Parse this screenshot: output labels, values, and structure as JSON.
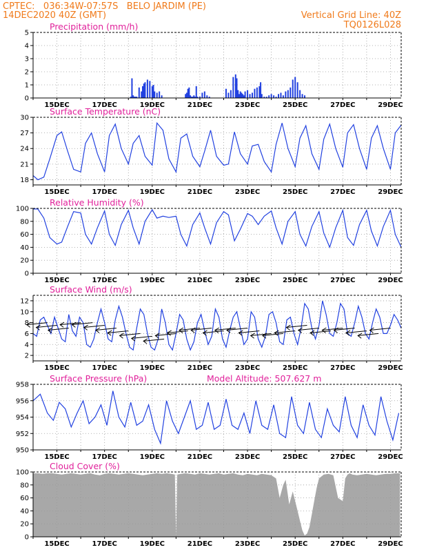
{
  "header": {
    "line1_left": "CPTEC:   036:34W-07:57S   BELO JARDIM (PE)",
    "line2_left": "14DEC2020 40Z (GMT)",
    "line1_right": "Vertical Grid Line: 40Z",
    "line2_right": "TQ0126L028"
  },
  "colors": {
    "header": "#f07a1a",
    "titles": "#e0209a",
    "series": "#2040e0",
    "cloud": "#a8a8a8",
    "grid": "#999999"
  },
  "chart_data": [
    {
      "id": "precipitation",
      "type": "bar",
      "title": "Precipitation (mm/h)",
      "ylim": [
        0,
        5
      ],
      "yticks": [
        0,
        1,
        2,
        3,
        4,
        5
      ],
      "xticks": [
        "15DEC",
        "17DEC",
        "19DEC",
        "21DEC",
        "23DEC",
        "25DEC",
        "27DEC",
        "29DEC"
      ],
      "x": [
        4.1,
        4.15,
        4.2,
        4.25,
        4.3,
        4.35,
        4.45,
        4.55,
        4.6,
        4.65,
        4.7,
        4.8,
        4.9,
        5.0,
        5.05,
        5.1,
        5.2,
        5.3,
        5.4,
        6.4,
        6.45,
        6.5,
        6.55,
        6.6,
        6.65,
        6.7,
        6.75,
        6.8,
        6.85,
        6.9,
        7.0,
        7.1,
        7.2,
        7.3,
        7.4,
        8.1,
        8.2,
        8.3,
        8.4,
        8.5,
        8.55,
        8.6,
        8.65,
        8.7,
        8.75,
        8.8,
        8.85,
        8.9,
        9.0,
        9.1,
        9.2,
        9.3,
        9.4,
        9.5,
        9.55,
        9.6,
        9.7,
        9.8,
        9.9,
        10.0,
        10.1,
        10.2,
        10.3,
        10.4,
        10.5,
        10.6,
        10.7,
        10.8,
        10.9,
        11.0,
        11.1,
        11.2,
        11.3,
        11.4
      ],
      "values": [
        0.1,
        1.5,
        0.2,
        0.1,
        0.1,
        0.1,
        0.8,
        0.5,
        0.9,
        1.1,
        1.2,
        1.4,
        1.3,
        0.9,
        1.0,
        0.5,
        0.4,
        0.5,
        0.2,
        0.3,
        0.4,
        0.7,
        0.8,
        0.2,
        0.1,
        0.1,
        0.2,
        0.1,
        0.9,
        0.1,
        0.1,
        0.4,
        0.5,
        0.2,
        0.1,
        0.7,
        0.4,
        0.6,
        1.6,
        1.8,
        1.5,
        0.6,
        0.3,
        0.5,
        0.4,
        0.3,
        0.2,
        0.5,
        0.6,
        0.3,
        0.4,
        0.7,
        0.8,
        0.9,
        1.2,
        0.3,
        0.1,
        0.1,
        0.2,
        0.3,
        0.2,
        0.1,
        0.3,
        0.4,
        0.2,
        0.5,
        0.6,
        0.8,
        1.4,
        1.6,
        1.2,
        0.6,
        0.3,
        0.2
      ]
    },
    {
      "id": "temperature",
      "type": "line",
      "title": "Surface Temperature (nC)",
      "ylim": [
        17,
        30
      ],
      "yticks": [
        18,
        21,
        24,
        27,
        30
      ],
      "xticks": [
        "15DEC",
        "17DEC",
        "19DEC",
        "21DEC",
        "23DEC",
        "25DEC",
        "27DEC",
        "29DEC"
      ],
      "x": [
        0.0,
        0.2,
        0.45,
        0.7,
        1.0,
        1.2,
        1.45,
        1.7,
        2.0,
        2.2,
        2.45,
        2.7,
        3.0,
        3.2,
        3.45,
        3.7,
        4.0,
        4.2,
        4.45,
        4.7,
        5.0,
        5.2,
        5.45,
        5.7,
        6.0,
        6.2,
        6.45,
        6.7,
        7.0,
        7.2,
        7.45,
        7.7,
        8.0,
        8.2,
        8.45,
        8.7,
        9.0,
        9.2,
        9.45,
        9.7,
        10.0,
        10.2,
        10.45,
        10.7,
        11.0,
        11.2,
        11.45,
        11.7,
        12.0,
        12.2,
        12.45,
        12.7,
        13.0,
        13.2,
        13.45,
        13.7,
        14.0,
        14.2,
        14.45,
        14.7,
        15.0,
        15.2,
        15.45
      ],
      "values": [
        18.8,
        18.0,
        18.5,
        22.0,
        26.5,
        27.2,
        23.5,
        20.0,
        19.5,
        25.0,
        27.0,
        23.0,
        19.5,
        26.5,
        28.7,
        24.0,
        21.0,
        25.0,
        26.5,
        22.5,
        20.8,
        28.9,
        27.5,
        22.0,
        19.5,
        26.0,
        26.8,
        22.5,
        20.5,
        23.5,
        27.5,
        22.5,
        20.8,
        21.0,
        27.2,
        23.0,
        21.0,
        24.5,
        24.8,
        21.5,
        19.5,
        24.8,
        28.9,
        24.0,
        20.5,
        26.0,
        28.4,
        23.0,
        20.0,
        25.8,
        28.7,
        24.0,
        20.4,
        27.0,
        28.6,
        24.0,
        20.0,
        26.0,
        28.4,
        24.0,
        20.0,
        27.0,
        28.5
      ]
    },
    {
      "id": "humidity",
      "type": "line",
      "title": "Relative Humidity (%)",
      "ylim": [
        0,
        100
      ],
      "yticks": [
        0,
        20,
        40,
        60,
        80,
        100
      ],
      "xticks": [
        "15DEC",
        "17DEC",
        "19DEC",
        "21DEC",
        "23DEC",
        "25DEC",
        "27DEC",
        "29DEC"
      ],
      "x": [
        0.0,
        0.2,
        0.45,
        0.7,
        1.0,
        1.2,
        1.45,
        1.7,
        2.0,
        2.2,
        2.45,
        2.7,
        3.0,
        3.2,
        3.45,
        3.7,
        4.0,
        4.2,
        4.45,
        4.7,
        5.0,
        5.2,
        5.45,
        5.7,
        6.0,
        6.2,
        6.45,
        6.7,
        7.0,
        7.2,
        7.45,
        7.7,
        8.0,
        8.2,
        8.45,
        8.7,
        9.0,
        9.2,
        9.45,
        9.7,
        10.0,
        10.2,
        10.45,
        10.7,
        11.0,
        11.2,
        11.45,
        11.7,
        12.0,
        12.2,
        12.45,
        12.7,
        13.0,
        13.2,
        13.45,
        13.7,
        14.0,
        14.2,
        14.45,
        14.7,
        15.0,
        15.2,
        15.45
      ],
      "values": [
        99.0,
        99.0,
        85.0,
        55.0,
        45.0,
        48.0,
        72.0,
        95.0,
        93.0,
        60.0,
        45.0,
        70.0,
        96.0,
        60.0,
        43.0,
        75.0,
        97.0,
        70.0,
        45.0,
        80.0,
        98.0,
        85.0,
        88.0,
        86.0,
        88.0,
        60.0,
        42.0,
        75.0,
        93.0,
        70.0,
        45.0,
        78.0,
        95.0,
        90.0,
        50.0,
        68.0,
        92.0,
        88.0,
        75.0,
        88.0,
        96.0,
        70.0,
        45.0,
        80.0,
        95.0,
        60.0,
        42.0,
        72.0,
        95.0,
        62.0,
        40.0,
        70.0,
        97.0,
        55.0,
        43.0,
        75.0,
        97.0,
        65.0,
        42.0,
        72.0,
        97.0,
        60.0,
        40.0
      ]
    },
    {
      "id": "wind",
      "type": "line",
      "title": "Surface Wind (m/s)",
      "ylim": [
        1,
        13
      ],
      "yticks": [
        2,
        4,
        6,
        8,
        10,
        12
      ],
      "xticks": [
        "15DEC",
        "17DEC",
        "19DEC",
        "21DEC",
        "23DEC",
        "25DEC",
        "27DEC",
        "29DEC"
      ],
      "x": [
        0.0,
        0.15,
        0.3,
        0.45,
        0.6,
        0.75,
        0.9,
        1.05,
        1.2,
        1.35,
        1.5,
        1.65,
        1.8,
        1.95,
        2.1,
        2.25,
        2.4,
        2.55,
        2.7,
        2.85,
        3.0,
        3.15,
        3.3,
        3.45,
        3.6,
        3.75,
        3.9,
        4.05,
        4.2,
        4.35,
        4.5,
        4.65,
        4.8,
        4.95,
        5.1,
        5.25,
        5.4,
        5.55,
        5.7,
        5.85,
        6.0,
        6.15,
        6.3,
        6.45,
        6.6,
        6.75,
        6.9,
        7.05,
        7.2,
        7.35,
        7.5,
        7.65,
        7.8,
        7.95,
        8.1,
        8.25,
        8.4,
        8.55,
        8.7,
        8.85,
        9.0,
        9.15,
        9.3,
        9.45,
        9.6,
        9.75,
        9.9,
        10.05,
        10.2,
        10.35,
        10.5,
        10.65,
        10.8,
        10.95,
        11.1,
        11.25,
        11.4,
        11.55,
        11.7,
        11.85,
        12.0,
        12.15,
        12.3,
        12.45,
        12.6,
        12.75,
        12.9,
        13.05,
        13.2,
        13.35,
        13.5,
        13.65,
        13.8,
        13.95,
        14.1,
        14.25,
        14.4,
        14.55,
        14.7,
        14.85,
        15.0,
        15.15,
        15.3,
        15.45
      ],
      "values": [
        6.0,
        5.5,
        8.5,
        9.0,
        7.5,
        6.0,
        9.0,
        7.0,
        5.0,
        4.5,
        9.5,
        6.5,
        5.5,
        9.0,
        8.0,
        4.0,
        3.5,
        5.0,
        8.0,
        10.5,
        8.0,
        5.0,
        4.5,
        8.5,
        11.0,
        9.0,
        6.0,
        3.5,
        3.0,
        7.0,
        10.5,
        9.5,
        6.0,
        3.5,
        3.0,
        5.0,
        10.5,
        8.0,
        4.0,
        3.0,
        6.0,
        9.5,
        8.5,
        5.0,
        3.0,
        4.5,
        8.0,
        9.5,
        6.5,
        4.0,
        5.5,
        10.5,
        9.0,
        5.0,
        3.5,
        6.5,
        9.0,
        10.0,
        7.0,
        4.0,
        5.0,
        10.0,
        9.0,
        5.0,
        3.5,
        5.5,
        9.5,
        10.0,
        8.0,
        4.5,
        4.0,
        8.5,
        9.0,
        6.0,
        4.0,
        7.0,
        11.5,
        10.5,
        7.0,
        5.0,
        7.5,
        12.0,
        9.5,
        6.0,
        5.5,
        8.0,
        11.5,
        10.5,
        6.0,
        5.5,
        8.0,
        11.0,
        9.0,
        6.0,
        5.0,
        8.0,
        10.5,
        9.0,
        6.0,
        6.0,
        7.5,
        9.5,
        8.5,
        7.0
      ],
      "vectors_x": [
        0.6,
        1.0,
        1.5,
        2.0,
        2.5,
        3.0,
        3.5,
        4.0,
        4.5,
        5.0,
        5.5,
        6.0,
        6.5,
        7.0,
        7.5,
        8.0,
        8.5,
        9.0,
        9.5,
        10.0,
        10.5,
        11.0,
        11.5,
        12.0,
        12.5,
        13.0,
        13.5,
        14.0,
        14.5,
        15.0
      ],
      "vectors_y": [
        8.0,
        7.5,
        7.0,
        8.0,
        8.0,
        7.5,
        7.0,
        6.5,
        6.0,
        5.5,
        5.0,
        6.0,
        6.5,
        7.0,
        7.0,
        6.5,
        7.0,
        7.0,
        6.5,
        6.0,
        6.0,
        6.5,
        7.5,
        7.0,
        6.5,
        7.0,
        7.0,
        6.5,
        6.0,
        7.0
      ]
    },
    {
      "id": "pressure",
      "type": "line",
      "title": "Surface Pressure (hPa)",
      "annotation": "Model Altitude: 507.627 m",
      "ylim": [
        950,
        958
      ],
      "yticks": [
        950,
        952,
        954,
        956,
        958
      ],
      "xticks": [
        "15DEC",
        "17DEC",
        "19DEC",
        "21DEC",
        "23DEC",
        "25DEC",
        "27DEC",
        "29DEC"
      ],
      "x": [
        0.0,
        0.3,
        0.6,
        0.85,
        1.1,
        1.35,
        1.6,
        1.85,
        2.1,
        2.35,
        2.6,
        2.85,
        3.1,
        3.35,
        3.6,
        3.85,
        4.1,
        4.35,
        4.6,
        4.85,
        5.1,
        5.35,
        5.6,
        5.85,
        6.1,
        6.35,
        6.6,
        6.85,
        7.1,
        7.35,
        7.6,
        7.85,
        8.1,
        8.35,
        8.6,
        8.85,
        9.1,
        9.35,
        9.6,
        9.85,
        10.1,
        10.35,
        10.6,
        10.85,
        11.1,
        11.35,
        11.6,
        11.85,
        12.1,
        12.35,
        12.6,
        12.85,
        13.1,
        13.35,
        13.6,
        13.85,
        14.1,
        14.35,
        14.6,
        14.85,
        15.1,
        15.35
      ],
      "values": [
        956.0,
        956.8,
        954.5,
        953.6,
        955.8,
        955.0,
        952.8,
        954.5,
        956.0,
        953.2,
        954.0,
        955.5,
        953.0,
        957.2,
        954.0,
        952.8,
        955.8,
        953.0,
        953.5,
        955.5,
        952.5,
        950.8,
        956.0,
        953.5,
        952.0,
        954.0,
        956.0,
        952.5,
        953.0,
        955.8,
        952.5,
        953.0,
        956.2,
        953.0,
        952.5,
        954.5,
        952.0,
        956.0,
        953.0,
        952.5,
        955.5,
        952.0,
        951.5,
        956.5,
        953.0,
        952.0,
        955.8,
        952.5,
        951.5,
        955.0,
        953.0,
        952.2,
        956.5,
        953.0,
        951.5,
        955.5,
        953.0,
        951.8,
        956.5,
        953.5,
        951.2,
        954.5
      ]
    },
    {
      "id": "cloud",
      "type": "area",
      "title": "Cloud Cover (%)",
      "ylim": [
        0,
        100
      ],
      "yticks": [
        0,
        20,
        40,
        60,
        80,
        100
      ],
      "xticks": [
        "15DEC",
        "17DEC",
        "19DEC",
        "21DEC",
        "23DEC",
        "25DEC",
        "27DEC",
        "29DEC"
      ],
      "x": [
        0.0,
        0.2,
        0.4,
        0.6,
        0.8,
        1.0,
        1.2,
        1.4,
        1.6,
        1.8,
        2.0,
        2.2,
        2.4,
        2.6,
        2.8,
        3.0,
        3.2,
        3.4,
        3.6,
        3.8,
        4.0,
        4.2,
        4.4,
        4.6,
        4.8,
        5.0,
        5.2,
        5.4,
        5.6,
        5.8,
        5.95,
        6.0,
        6.05,
        6.2,
        6.4,
        6.6,
        6.8,
        7.0,
        7.2,
        7.4,
        7.6,
        7.8,
        8.0,
        8.2,
        8.4,
        8.6,
        8.8,
        9.0,
        9.2,
        9.4,
        9.6,
        9.8,
        10.0,
        10.2,
        10.35,
        10.5,
        10.6,
        10.75,
        10.9,
        11.0,
        11.1,
        11.2,
        11.3,
        11.4,
        11.5,
        11.6,
        11.7,
        11.8,
        11.9,
        12.0,
        12.2,
        12.4,
        12.6,
        12.8,
        13.0,
        13.1,
        13.2,
        13.3,
        13.4,
        13.6,
        13.8,
        14.0,
        14.2,
        14.4,
        14.6,
        14.8,
        15.0,
        15.2,
        15.4
      ],
      "values": [
        98.0,
        98.0,
        97.0,
        98.0,
        98.0,
        97.0,
        96.0,
        97.0,
        98.0,
        97.0,
        96.0,
        97.0,
        98.0,
        96.0,
        95.0,
        97.0,
        98.0,
        97.0,
        96.0,
        97.0,
        98.0,
        97.0,
        96.0,
        95.0,
        96.0,
        97.0,
        98.0,
        97.0,
        98.0,
        97.0,
        96.0,
        0.0,
        96.0,
        97.0,
        98.0,
        97.0,
        96.0,
        98.0,
        97.0,
        96.0,
        97.0,
        98.0,
        96.0,
        97.0,
        98.0,
        96.0,
        95.0,
        97.0,
        96.0,
        95.0,
        97.0,
        96.0,
        95.0,
        90.0,
        60.0,
        80.0,
        88.0,
        50.0,
        70.0,
        55.0,
        40.0,
        25.0,
        10.0,
        2.0,
        5.0,
        15.0,
        35.0,
        55.0,
        75.0,
        90.0,
        96.0,
        97.0,
        95.0,
        60.0,
        55.0,
        90.0,
        96.0,
        98.0,
        96.0,
        95.0,
        96.0,
        97.0,
        96.0,
        95.0,
        96.0,
        97.0,
        97.0,
        98.0,
        98.0
      ]
    }
  ]
}
